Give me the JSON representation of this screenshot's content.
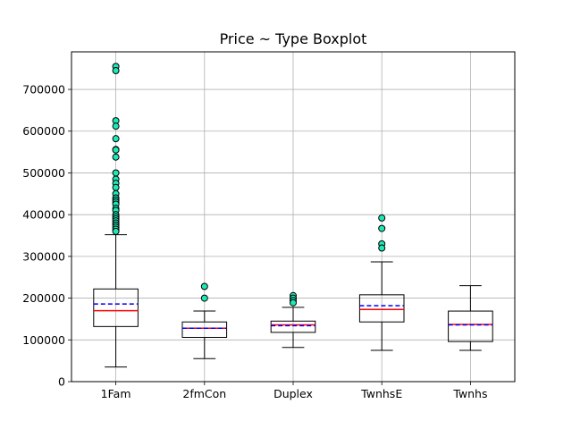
{
  "chart_data": {
    "type": "boxplot",
    "title": "Price ~ Type Boxplot",
    "xlabel": "",
    "ylabel": "",
    "ylim": [
      0,
      790000
    ],
    "yticks": [
      0,
      100000,
      200000,
      300000,
      400000,
      500000,
      600000,
      700000
    ],
    "ytick_labels": [
      "0",
      "100000",
      "200000",
      "300000",
      "400000",
      "500000",
      "600000",
      "700000"
    ],
    "grid": true,
    "colors": {
      "box": "#000000",
      "median": "#ff0000",
      "mean": "#0000ff",
      "flier_face": "#1de9b6",
      "flier_edge": "#000000",
      "grid": "#b0b0b0"
    },
    "categories": [
      "1Fam",
      "2fmCon",
      "Duplex",
      "TwnhsE",
      "Twnhs"
    ],
    "boxes": [
      {
        "category": "1Fam",
        "whisker_low": 35000,
        "q1": 132000,
        "median": 170000,
        "q3": 222000,
        "whisker_high": 352000,
        "mean": 186000,
        "fliers": [
          755000,
          745000,
          625000,
          612000,
          582000,
          556000,
          555000,
          538000,
          500000,
          485000,
          475000,
          465000,
          450000,
          440000,
          435000,
          430000,
          425000,
          415000,
          410000,
          400000,
          395000,
          390000,
          385000,
          380000,
          375000,
          370000,
          365000,
          360000
        ]
      },
      {
        "category": "2fmCon",
        "whisker_low": 55000,
        "q1": 106000,
        "median": 128000,
        "q3": 143000,
        "whisker_high": 169000,
        "mean": 128000,
        "fliers": [
          228000,
          200000
        ]
      },
      {
        "category": "Duplex",
        "whisker_low": 82000,
        "q1": 118000,
        "median": 136000,
        "q3": 145000,
        "whisker_high": 178000,
        "mean": 134000,
        "fliers": [
          206000,
          200000,
          194000,
          189000
        ]
      },
      {
        "category": "TwnhsE",
        "whisker_low": 75000,
        "q1": 143000,
        "median": 173000,
        "q3": 208000,
        "whisker_high": 287000,
        "mean": 182000,
        "fliers": [
          392000,
          367000,
          330000,
          320000
        ]
      },
      {
        "category": "Twnhs",
        "whisker_low": 75000,
        "q1": 96000,
        "median": 137000,
        "q3": 169000,
        "whisker_high": 230000,
        "mean": 136000,
        "fliers": []
      }
    ]
  }
}
